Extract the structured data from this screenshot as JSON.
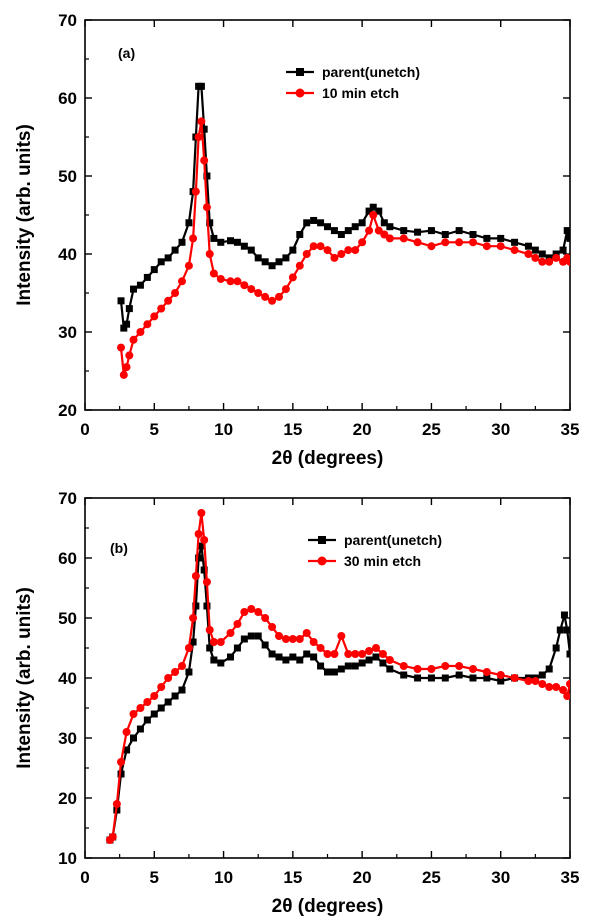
{
  "chart_data": [
    {
      "type": "line",
      "panel_label": "(a)",
      "xlabel": "2θ (degrees)",
      "ylabel": "Intensity (arb. units)",
      "xlim": [
        0,
        35
      ],
      "ylim": [
        20,
        70
      ],
      "xticks": [
        0,
        5,
        10,
        15,
        20,
        25,
        30,
        35
      ],
      "yticks": [
        20,
        30,
        40,
        50,
        60,
        70
      ],
      "legend_position": "top-right",
      "series": [
        {
          "name": "parent(unetch)",
          "color": "#000000",
          "marker": "square",
          "points": [
            [
              2.6,
              34
            ],
            [
              2.8,
              30.5
            ],
            [
              3.0,
              31
            ],
            [
              3.2,
              33
            ],
            [
              3.5,
              35.5
            ],
            [
              4,
              36
            ],
            [
              4.5,
              37
            ],
            [
              5,
              38
            ],
            [
              5.5,
              39
            ],
            [
              6,
              39.5
            ],
            [
              6.5,
              40.5
            ],
            [
              7,
              41.5
            ],
            [
              7.5,
              44
            ],
            [
              7.8,
              48
            ],
            [
              8.0,
              55
            ],
            [
              8.2,
              61.5
            ],
            [
              8.4,
              61.5
            ],
            [
              8.6,
              56
            ],
            [
              8.8,
              50
            ],
            [
              9.0,
              44
            ],
            [
              9.3,
              42
            ],
            [
              9.8,
              41.5
            ],
            [
              10.5,
              41.7
            ],
            [
              11,
              41.5
            ],
            [
              11.5,
              41
            ],
            [
              12,
              40.5
            ],
            [
              12.5,
              39.5
            ],
            [
              13,
              39
            ],
            [
              13.5,
              38.5
            ],
            [
              14,
              39
            ],
            [
              14.5,
              39.5
            ],
            [
              15,
              40.5
            ],
            [
              15.5,
              42.5
            ],
            [
              16,
              44
            ],
            [
              16.5,
              44.3
            ],
            [
              17,
              44
            ],
            [
              17.5,
              43.5
            ],
            [
              18,
              43
            ],
            [
              18.5,
              42.5
            ],
            [
              19,
              43
            ],
            [
              19.5,
              43.5
            ],
            [
              20,
              44
            ],
            [
              20.5,
              45.5
            ],
            [
              20.8,
              46
            ],
            [
              21.2,
              45.5
            ],
            [
              21.6,
              44
            ],
            [
              22,
              43.5
            ],
            [
              23,
              43
            ],
            [
              24,
              42.8
            ],
            [
              25,
              43
            ],
            [
              26,
              42.5
            ],
            [
              27,
              43
            ],
            [
              28,
              42.5
            ],
            [
              29,
              42
            ],
            [
              30,
              42
            ],
            [
              31,
              41.5
            ],
            [
              32,
              41
            ],
            [
              32.5,
              40.5
            ],
            [
              33,
              40
            ],
            [
              33.5,
              39.5
            ],
            [
              34,
              40
            ],
            [
              34.5,
              40.5
            ],
            [
              34.8,
              43
            ],
            [
              35,
              42
            ]
          ]
        },
        {
          "name": "10 min etch",
          "color": "#ff0000",
          "marker": "circle",
          "points": [
            [
              2.6,
              28
            ],
            [
              2.8,
              24.5
            ],
            [
              3.0,
              25.5
            ],
            [
              3.2,
              27
            ],
            [
              3.5,
              29
            ],
            [
              4,
              30
            ],
            [
              4.5,
              31
            ],
            [
              5,
              32
            ],
            [
              5.5,
              33
            ],
            [
              6,
              34
            ],
            [
              6.5,
              35
            ],
            [
              7,
              36.5
            ],
            [
              7.5,
              38.5
            ],
            [
              7.8,
              42
            ],
            [
              8.0,
              48
            ],
            [
              8.2,
              55
            ],
            [
              8.4,
              57
            ],
            [
              8.6,
              52
            ],
            [
              8.8,
              46
            ],
            [
              9.0,
              40
            ],
            [
              9.3,
              37.5
            ],
            [
              9.8,
              36.8
            ],
            [
              10.5,
              36.5
            ],
            [
              11,
              36.5
            ],
            [
              11.5,
              36
            ],
            [
              12,
              35.5
            ],
            [
              12.5,
              35
            ],
            [
              13,
              34.5
            ],
            [
              13.5,
              34
            ],
            [
              14,
              34.5
            ],
            [
              14.5,
              35.5
            ],
            [
              15,
              37
            ],
            [
              15.5,
              38.5
            ],
            [
              16,
              40
            ],
            [
              16.5,
              41
            ],
            [
              17,
              41
            ],
            [
              17.5,
              40.5
            ],
            [
              18,
              39.5
            ],
            [
              18.5,
              40
            ],
            [
              19,
              40.5
            ],
            [
              19.5,
              40.5
            ],
            [
              20,
              41.5
            ],
            [
              20.5,
              43
            ],
            [
              20.8,
              45
            ],
            [
              21.2,
              43
            ],
            [
              21.6,
              42.5
            ],
            [
              22,
              42
            ],
            [
              23,
              42
            ],
            [
              24,
              41.5
            ],
            [
              25,
              41
            ],
            [
              26,
              41.5
            ],
            [
              27,
              41.5
            ],
            [
              28,
              41.5
            ],
            [
              29,
              41
            ],
            [
              30,
              41
            ],
            [
              31,
              40.5
            ],
            [
              32,
              40
            ],
            [
              32.5,
              39.5
            ],
            [
              33,
              39
            ],
            [
              33.5,
              39
            ],
            [
              34,
              39.5
            ],
            [
              34.5,
              39
            ],
            [
              34.8,
              39.5
            ],
            [
              35,
              39
            ]
          ]
        }
      ]
    },
    {
      "type": "line",
      "panel_label": "(b)",
      "xlabel": "2θ (degrees)",
      "ylabel": "Intensity (arb. units)",
      "xlim": [
        0,
        35
      ],
      "ylim": [
        10,
        70
      ],
      "xticks": [
        0,
        5,
        10,
        15,
        20,
        25,
        30,
        35
      ],
      "yticks": [
        10,
        20,
        30,
        40,
        50,
        60,
        70
      ],
      "legend_position": "top-right",
      "series": [
        {
          "name": "parent(unetch)",
          "color": "#000000",
          "marker": "square",
          "points": [
            [
              1.8,
              13
            ],
            [
              2.0,
              13.5
            ],
            [
              2.3,
              18
            ],
            [
              2.6,
              24
            ],
            [
              3.0,
              28
            ],
            [
              3.5,
              30
            ],
            [
              4,
              31.5
            ],
            [
              4.5,
              33
            ],
            [
              5,
              34
            ],
            [
              5.5,
              35
            ],
            [
              6,
              36
            ],
            [
              6.5,
              37
            ],
            [
              7,
              38
            ],
            [
              7.5,
              41
            ],
            [
              7.8,
              46
            ],
            [
              8.0,
              52
            ],
            [
              8.2,
              60
            ],
            [
              8.4,
              62
            ],
            [
              8.6,
              58
            ],
            [
              8.8,
              52
            ],
            [
              9.0,
              45
            ],
            [
              9.3,
              43
            ],
            [
              9.8,
              42.5
            ],
            [
              10.5,
              43.5
            ],
            [
              11,
              45
            ],
            [
              11.5,
              46.5
            ],
            [
              12,
              47
            ],
            [
              12.5,
              47
            ],
            [
              13,
              45.5
            ],
            [
              13.5,
              44
            ],
            [
              14,
              43.5
            ],
            [
              14.5,
              43
            ],
            [
              15,
              43.5
            ],
            [
              15.5,
              43
            ],
            [
              16,
              44
            ],
            [
              16.5,
              43.5
            ],
            [
              17,
              42
            ],
            [
              17.5,
              41
            ],
            [
              18,
              41
            ],
            [
              18.5,
              41.5
            ],
            [
              19,
              42
            ],
            [
              19.5,
              42
            ],
            [
              20,
              42.5
            ],
            [
              20.5,
              43
            ],
            [
              21,
              43.5
            ],
            [
              21.5,
              42.5
            ],
            [
              22,
              41.5
            ],
            [
              23,
              40.5
            ],
            [
              24,
              40
            ],
            [
              25,
              40
            ],
            [
              26,
              40
            ],
            [
              27,
              40.5
            ],
            [
              28,
              40
            ],
            [
              29,
              40
            ],
            [
              30,
              39.5
            ],
            [
              31,
              40
            ],
            [
              32,
              40
            ],
            [
              32.5,
              40
            ],
            [
              33,
              40.5
            ],
            [
              33.5,
              41.5
            ],
            [
              34,
              45
            ],
            [
              34.3,
              48
            ],
            [
              34.6,
              50.5
            ],
            [
              34.8,
              48
            ],
            [
              35,
              44
            ]
          ]
        },
        {
          "name": "30 min etch",
          "color": "#ff0000",
          "marker": "circle",
          "points": [
            [
              1.8,
              13
            ],
            [
              2.0,
              13.5
            ],
            [
              2.3,
              19
            ],
            [
              2.6,
              26
            ],
            [
              3.0,
              31
            ],
            [
              3.5,
              34
            ],
            [
              4,
              35
            ],
            [
              4.5,
              36
            ],
            [
              5,
              37
            ],
            [
              5.5,
              38.5
            ],
            [
              6,
              40
            ],
            [
              6.5,
              41
            ],
            [
              7,
              42
            ],
            [
              7.5,
              45
            ],
            [
              7.8,
              50
            ],
            [
              8.0,
              57
            ],
            [
              8.2,
              64
            ],
            [
              8.4,
              67.5
            ],
            [
              8.6,
              63
            ],
            [
              8.8,
              56
            ],
            [
              9.0,
              48
            ],
            [
              9.3,
              46
            ],
            [
              9.8,
              46
            ],
            [
              10.5,
              47.5
            ],
            [
              11,
              49
            ],
            [
              11.5,
              51
            ],
            [
              12,
              51.5
            ],
            [
              12.5,
              51
            ],
            [
              13,
              50
            ],
            [
              13.5,
              48.5
            ],
            [
              14,
              47
            ],
            [
              14.5,
              46.5
            ],
            [
              15,
              46.5
            ],
            [
              15.5,
              46.5
            ],
            [
              16,
              47.5
            ],
            [
              16.5,
              46
            ],
            [
              17,
              45
            ],
            [
              17.5,
              44
            ],
            [
              18,
              44
            ],
            [
              18.5,
              47
            ],
            [
              19,
              44
            ],
            [
              19.5,
              44
            ],
            [
              20,
              44
            ],
            [
              20.5,
              44.5
            ],
            [
              21,
              45
            ],
            [
              21.5,
              44
            ],
            [
              22,
              43
            ],
            [
              23,
              42
            ],
            [
              24,
              41.5
            ],
            [
              25,
              41.5
            ],
            [
              26,
              42
            ],
            [
              27,
              42
            ],
            [
              28,
              41.5
            ],
            [
              29,
              41
            ],
            [
              30,
              40.5
            ],
            [
              31,
              40
            ],
            [
              32,
              39.5
            ],
            [
              32.5,
              39.5
            ],
            [
              33,
              39
            ],
            [
              33.5,
              38.5
            ],
            [
              34,
              38.5
            ],
            [
              34.5,
              38
            ],
            [
              34.8,
              37
            ],
            [
              35,
              39
            ]
          ]
        }
      ]
    }
  ]
}
